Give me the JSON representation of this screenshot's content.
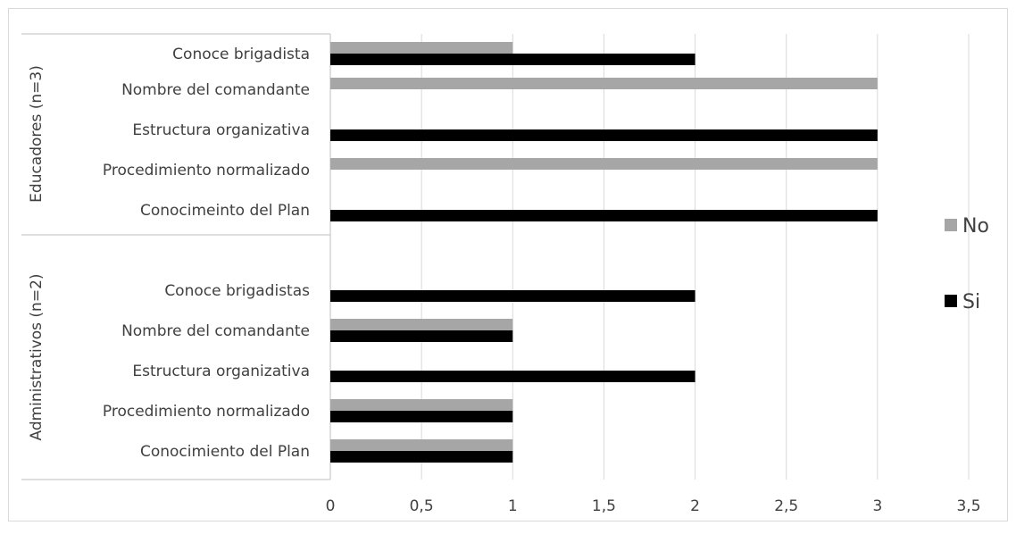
{
  "chart_data": {
    "type": "bar",
    "orientation": "horizontal",
    "title": "",
    "xlabel": "",
    "ylabel": "",
    "xlim": [
      0,
      3.5
    ],
    "x_ticks": [
      0,
      0.5,
      1,
      1.5,
      2,
      2.5,
      3,
      3.5
    ],
    "x_tick_labels": [
      "0",
      "0,5",
      "1",
      "1,5",
      "2",
      "2,5",
      "3",
      "3,5"
    ],
    "grid": "vertical",
    "legend_placement": "right",
    "colors": {
      "No": "#a6a6a6",
      "Si": "#000000",
      "grid": "#d9d9d9",
      "axis": "#bfbfbf",
      "text": "#404040"
    },
    "groups": [
      {
        "label": "Educadores (n=3)",
        "categories": [
          {
            "label": "Conoce brigadista",
            "No": 1,
            "Si": 2
          },
          {
            "label": "Nombre del comandante",
            "No": 3,
            "Si": 0
          },
          {
            "label": "Estructura organizativa",
            "No": 0,
            "Si": 3
          },
          {
            "label": "Procedimiento normalizado",
            "No": 3,
            "Si": 0
          },
          {
            "label": "Conocimeinto del Plan",
            "No": 0,
            "Si": 3
          }
        ]
      },
      {
        "label": "Administrativos  (n=2)",
        "categories": [
          {
            "label": "Conoce brigadistas",
            "No": 0,
            "Si": 2
          },
          {
            "label": "Nombre del comandante",
            "No": 1,
            "Si": 1
          },
          {
            "label": "Estructura organizativa",
            "No": 0,
            "Si": 2
          },
          {
            "label": "Procedimiento normalizado",
            "No": 1,
            "Si": 1
          },
          {
            "label": "Conocimiento del Plan",
            "No": 1,
            "Si": 1
          }
        ]
      }
    ],
    "series": [
      {
        "name": "No"
      },
      {
        "name": "Si"
      }
    ]
  }
}
